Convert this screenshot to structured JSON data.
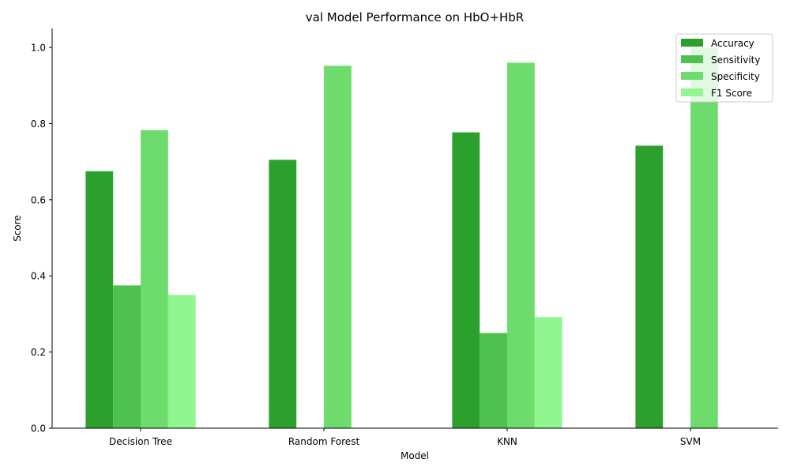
{
  "chart_data": {
    "type": "bar",
    "title": "val Model Performance on HbO+HbR",
    "xlabel": "Model",
    "ylabel": "Score",
    "categories": [
      "Decision Tree",
      "Random Forest",
      "KNN",
      "SVM"
    ],
    "series": [
      {
        "name": "Accuracy",
        "color": "#2ca02c",
        "values": [
          0.675,
          0.705,
          0.777,
          0.742
        ]
      },
      {
        "name": "Sensitivity",
        "color": "#4ec14e",
        "values": [
          0.375,
          0.0,
          0.25,
          0.0
        ]
      },
      {
        "name": "Specificity",
        "color": "#6ddc6d",
        "values": [
          0.783,
          0.952,
          0.96,
          1.0
        ]
      },
      {
        "name": "F1 Score",
        "color": "#90f690",
        "values": [
          0.35,
          0.0,
          0.292,
          0.0
        ]
      }
    ],
    "ylim": [
      0,
      1.05
    ],
    "yticks": [
      "0.0",
      "0.2",
      "0.4",
      "0.6",
      "0.8",
      "1.0"
    ],
    "grid": false,
    "legend_position": "top-right"
  }
}
